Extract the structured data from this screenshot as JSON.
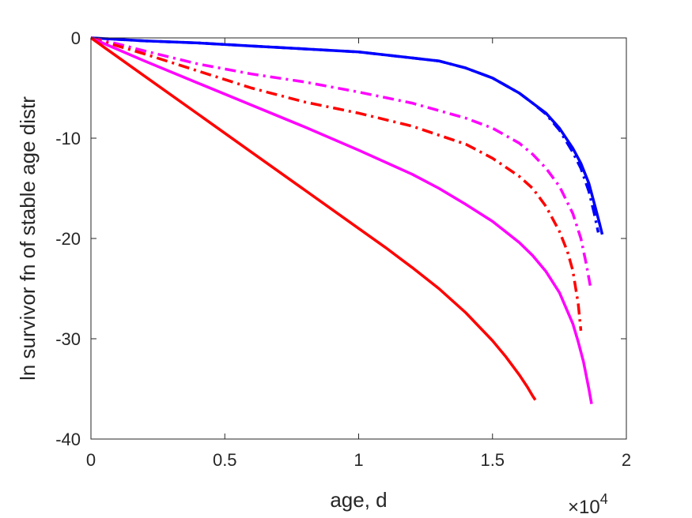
{
  "chart_data": {
    "type": "line",
    "xlabel": "age, d",
    "ylabel": "ln survivor fn of stable age distr",
    "x_multiplier_label": {
      "base": "×10",
      "exponent": "4"
    },
    "xlim": [
      0,
      20000
    ],
    "ylim": [
      -40,
      0
    ],
    "x_ticks": [
      0,
      5000,
      10000,
      15000,
      20000
    ],
    "x_tick_labels": [
      "0",
      "0.5",
      "1",
      "1.5",
      "2"
    ],
    "y_ticks": [
      0,
      -10,
      -20,
      -30,
      -40
    ],
    "y_tick_labels": [
      "0",
      "-10",
      "-20",
      "-30",
      "-40"
    ],
    "grid": false,
    "series": [
      {
        "color": "#0000ff",
        "style": "solid",
        "x": [
          0,
          2000,
          4000,
          6000,
          8000,
          10000,
          12000,
          13000,
          14000,
          15000,
          16000,
          16500,
          17000,
          17500,
          18000,
          18300,
          18600,
          18800,
          19000,
          19100
        ],
        "y": [
          0,
          -0.3,
          -0.5,
          -0.8,
          -1.1,
          -1.4,
          -2.0,
          -2.3,
          -3.0,
          -4.0,
          -5.5,
          -6.5,
          -7.5,
          -9.0,
          -11.0,
          -12.5,
          -14.5,
          -16.5,
          -18.5,
          -19.6
        ]
      },
      {
        "color": "#0000ff",
        "style": "dashdot",
        "x": [
          0,
          2000,
          4000,
          6000,
          8000,
          10000,
          12000,
          13000,
          14000,
          15000,
          16000,
          16500,
          17000,
          17500,
          18000,
          18300,
          18600,
          18800,
          18950
        ],
        "y": [
          0,
          -0.3,
          -0.5,
          -0.8,
          -1.1,
          -1.4,
          -2.0,
          -2.3,
          -3.0,
          -4.0,
          -5.5,
          -6.5,
          -7.6,
          -9.2,
          -11.4,
          -13.0,
          -15.3,
          -17.5,
          -19.4
        ]
      },
      {
        "color": "#ff00ff",
        "style": "dashdot",
        "x": [
          0,
          1000,
          2000,
          4000,
          6000,
          8000,
          10000,
          12000,
          14000,
          15000,
          16000,
          16500,
          17000,
          17500,
          18000,
          18300,
          18500,
          18650
        ],
        "y": [
          0,
          -0.6,
          -1.3,
          -2.6,
          -3.6,
          -4.4,
          -5.4,
          -6.5,
          -8.0,
          -9.0,
          -10.5,
          -11.6,
          -13.0,
          -14.8,
          -17.5,
          -20.0,
          -22.5,
          -24.7
        ]
      },
      {
        "color": "#ff0000",
        "style": "dashdot",
        "x": [
          0,
          1000,
          2000,
          4000,
          6000,
          8000,
          10000,
          12000,
          13000,
          14000,
          15000,
          16000,
          16500,
          17000,
          17500,
          17800,
          18000,
          18200,
          18300
        ],
        "y": [
          0,
          -0.8,
          -1.6,
          -3.3,
          -5.0,
          -6.4,
          -7.5,
          -8.8,
          -9.7,
          -10.6,
          -12.0,
          -13.8,
          -15.0,
          -16.8,
          -19.3,
          -21.3,
          -23.2,
          -26.5,
          -29.2
        ]
      },
      {
        "color": "#ff00ff",
        "style": "solid",
        "x": [
          0,
          2000,
          4000,
          6000,
          8000,
          10000,
          12000,
          13000,
          14000,
          15000,
          16000,
          16500,
          17000,
          17500,
          18000,
          18200,
          18400,
          18600,
          18700
        ],
        "y": [
          0,
          -2.3,
          -4.5,
          -6.7,
          -8.9,
          -11.2,
          -13.6,
          -15.0,
          -16.6,
          -18.3,
          -20.4,
          -21.7,
          -23.3,
          -25.4,
          -28.5,
          -30.3,
          -32.3,
          -35.0,
          -36.5
        ]
      },
      {
        "color": "#ff0000",
        "style": "solid",
        "x": [
          0,
          2000,
          4000,
          6000,
          8000,
          10000,
          11000,
          12000,
          13000,
          14000,
          15000,
          15500,
          16000,
          16300,
          16500,
          16600
        ],
        "y": [
          0,
          -3.8,
          -7.6,
          -11.4,
          -15.2,
          -19.0,
          -20.9,
          -22.9,
          -25.0,
          -27.4,
          -30.2,
          -31.8,
          -33.6,
          -34.8,
          -35.7,
          -36.1
        ]
      }
    ]
  }
}
